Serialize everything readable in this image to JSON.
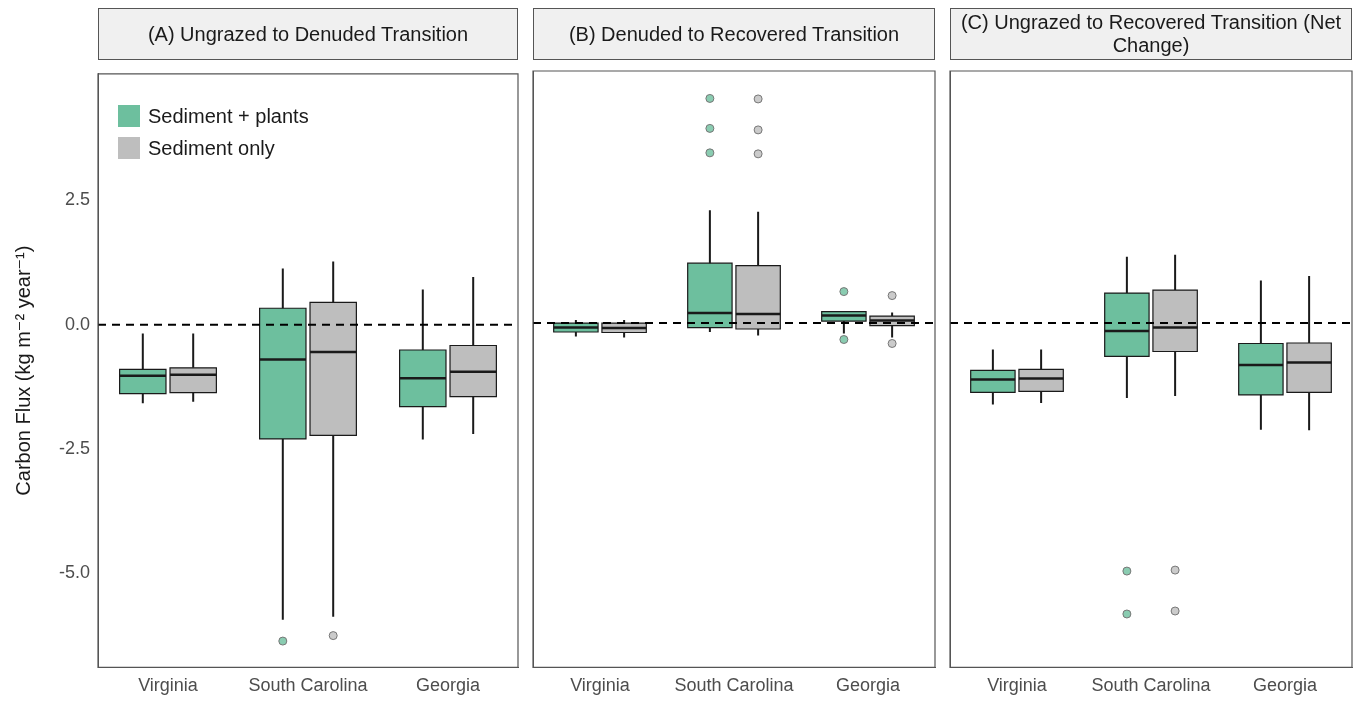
{
  "chart_data": [
    {
      "type": "box",
      "title": "(A) Ungrazed to Denuded Transition",
      "ylabel": "Carbon Flux (kg m⁻² year⁻¹)",
      "categories": [
        "Virginia",
        "South Carolina",
        "Georgia"
      ],
      "ylim": [
        -6.9,
        5.05
      ],
      "yticks": [
        {
          "value": -5,
          "label": "-5.0"
        },
        -2.5,
        {
          "value": 0,
          "label": "0.0"
        },
        2.5
      ],
      "legend": "top left",
      "ref_lines": [
        {
          "axis": "y",
          "value": 0,
          "line_style": "dashed"
        }
      ],
      "series": [
        {
          "name": "Sediment + plants",
          "color": "#6dbf9e",
          "boxes": [
            {
              "low": -1.58,
              "q1": -1.39,
              "median": -1.03,
              "q3": -0.9,
              "high": -0.18
            },
            {
              "low": -5.94,
              "q1": -2.3,
              "median": -0.7,
              "q3": 0.33,
              "high": 1.13,
              "outliers": [
                -6.37
              ]
            },
            {
              "low": -2.31,
              "q1": -1.65,
              "median": -1.08,
              "q3": -0.51,
              "high": 0.71
            }
          ]
        },
        {
          "name": "Sediment only",
          "color": "#bebebe",
          "boxes": [
            {
              "low": -1.55,
              "q1": -1.37,
              "median": -1.01,
              "q3": -0.87,
              "high": -0.18
            },
            {
              "low": -5.88,
              "q1": -2.23,
              "median": -0.55,
              "q3": 0.45,
              "high": 1.27,
              "outliers": [
                -6.26
              ]
            },
            {
              "low": -2.2,
              "q1": -1.45,
              "median": -0.95,
              "q3": -0.42,
              "high": 0.96
            }
          ]
        }
      ]
    },
    {
      "type": "box",
      "title": "(B) Denuded to Recovered Transition",
      "categories": [
        "Virginia",
        "South Carolina",
        "Georgia"
      ],
      "ylim": [
        -6.9,
        5.05
      ],
      "tick_labels": "x",
      "ref_lines": [
        {
          "axis": "y",
          "value": 0,
          "line_style": "dashed"
        }
      ],
      "series": [
        {
          "color": "#6dbf9e",
          "boxes": [
            {
              "low": -0.27,
              "q1": -0.18,
              "median": -0.09,
              "q3": 0.0,
              "high": 0.06
            },
            {
              "low": -0.18,
              "q1": -0.09,
              "median": 0.2,
              "q3": 1.2,
              "high": 2.26,
              "outliers": [
                3.41,
                3.9,
                4.5
              ]
            },
            {
              "low": -0.21,
              "q1": 0.04,
              "median": 0.15,
              "q3": 0.23,
              "high": 0.23,
              "outliers": [
                0.63,
                -0.33
              ]
            }
          ]
        },
        {
          "color": "#bebebe",
          "boxes": [
            {
              "low": -0.29,
              "q1": -0.19,
              "median": -0.1,
              "q3": 0.0,
              "high": 0.06
            },
            {
              "low": -0.25,
              "q1": -0.12,
              "median": 0.18,
              "q3": 1.15,
              "high": 2.23,
              "outliers": [
                3.39,
                3.87,
                4.49
              ]
            },
            {
              "low": -0.29,
              "q1": -0.05,
              "median": 0.05,
              "q3": 0.14,
              "high": 0.21,
              "outliers": [
                0.55,
                -0.41
              ]
            }
          ]
        }
      ]
    },
    {
      "type": "box",
      "title": "(C) Ungrazed to Recovered Transition (Net Change)",
      "categories": [
        "Virginia",
        "South Carolina",
        "Georgia"
      ],
      "ylim": [
        -6.9,
        5.05
      ],
      "tick_labels": "x",
      "ref_lines": [
        {
          "axis": "y",
          "value": 0,
          "line_style": "dashed"
        }
      ],
      "series": [
        {
          "color": "#6dbf9e",
          "boxes": [
            {
              "low": -1.63,
              "q1": -1.39,
              "median": -1.13,
              "q3": -0.95,
              "high": -0.53
            },
            {
              "low": -1.5,
              "q1": -0.67,
              "median": -0.16,
              "q3": 0.6,
              "high": 1.33,
              "outliers": [
                -4.97,
                -5.83
              ]
            },
            {
              "low": -2.14,
              "q1": -1.44,
              "median": -0.84,
              "q3": -0.41,
              "high": 0.85
            }
          ]
        },
        {
          "color": "#bebebe",
          "boxes": [
            {
              "low": -1.6,
              "q1": -1.37,
              "median": -1.11,
              "q3": -0.93,
              "high": -0.53
            },
            {
              "low": -1.46,
              "q1": -0.57,
              "median": -0.09,
              "q3": 0.66,
              "high": 1.37,
              "outliers": [
                -4.95,
                -5.77
              ]
            },
            {
              "low": -2.15,
              "q1": -1.39,
              "median": -0.79,
              "q3": -0.4,
              "high": 0.94
            }
          ]
        }
      ]
    }
  ]
}
